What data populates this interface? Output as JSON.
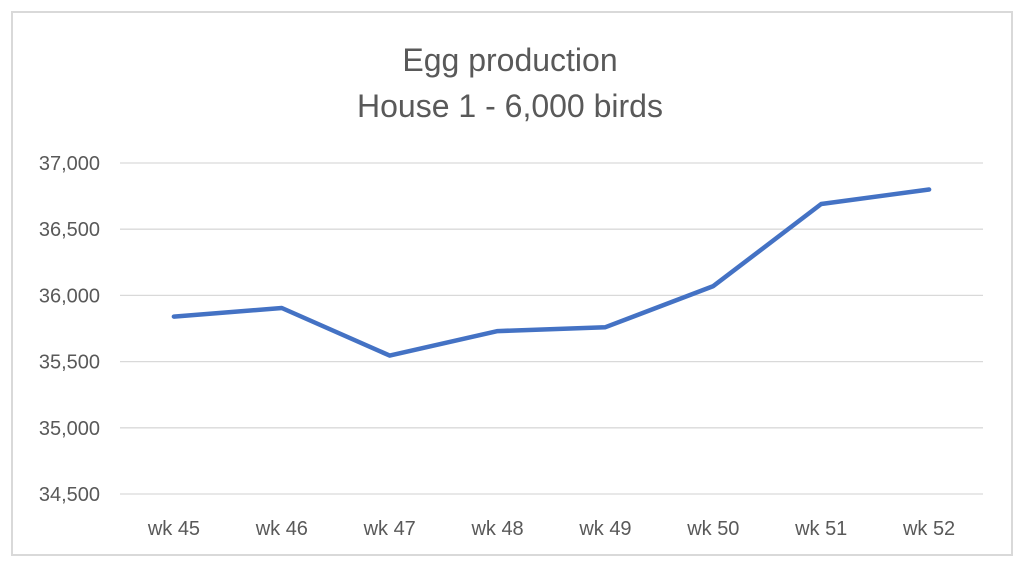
{
  "chart_data": {
    "type": "line",
    "title": "Egg production",
    "subtitle": "House 1 - 6,000 birds",
    "xlabel": "",
    "ylabel": "",
    "categories": [
      "wk 45",
      "wk 46",
      "wk 47",
      "wk 48",
      "wk 49",
      "wk 50",
      "wk 51",
      "wk 52"
    ],
    "series": [
      {
        "values": [
          35840,
          35905,
          35545,
          35730,
          35760,
          36070,
          36690,
          36800
        ],
        "color": "#4472c4"
      }
    ],
    "ylim": [
      34500,
      37000
    ],
    "yticks": [
      34500,
      35000,
      35500,
      36000,
      36500,
      37000
    ],
    "ytick_labels": [
      "34,500",
      "35,000",
      "35,500",
      "36,000",
      "36,500",
      "37,000"
    ],
    "grid": true,
    "legend": "none"
  }
}
